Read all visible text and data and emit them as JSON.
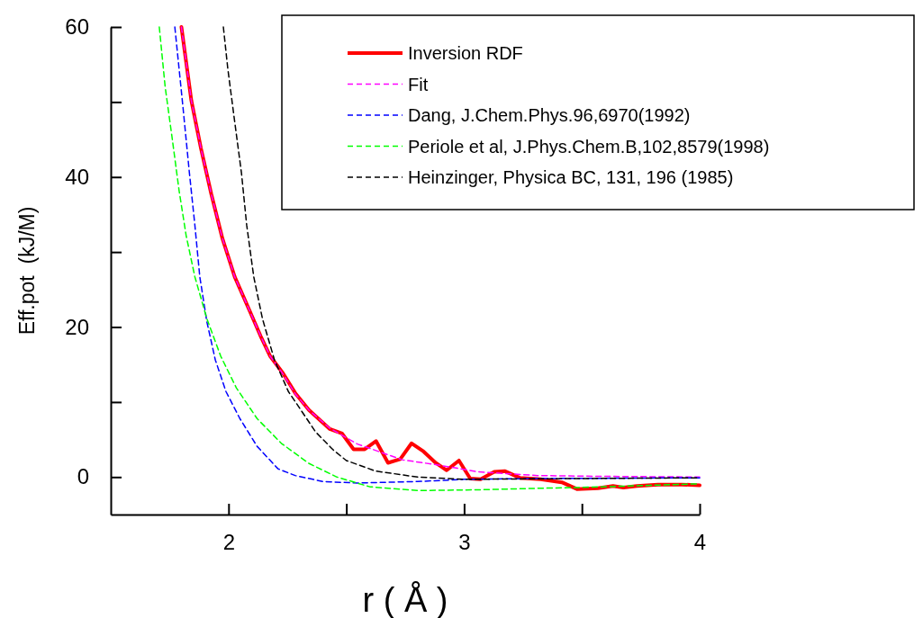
{
  "chart_data": {
    "type": "line",
    "xlabel": "r ( Å )",
    "ylabel": "Eff.pot  (kJ/M)",
    "xlim": [
      1.5,
      4
    ],
    "ylim": [
      -5,
      60
    ],
    "xticks": [
      2,
      {
        "value": 2.5,
        "label": null
      },
      3,
      {
        "value": 3.5,
        "label": null
      },
      4
    ],
    "yticks": [
      0,
      {
        "value": 10,
        "label": null
      },
      20,
      {
        "value": 30,
        "label": null
      },
      40,
      {
        "value": 50,
        "label": null
      },
      60
    ],
    "grid": false,
    "legend": "top right",
    "marker": "none",
    "series": [
      {
        "name": "Inversion RDF",
        "color": "#ff0000",
        "line_style": "solid",
        "x": [
          1.8,
          1.842,
          1.883,
          1.927,
          1.974,
          2.026,
          2.085,
          2.136,
          2.177,
          2.232,
          2.283,
          2.342,
          2.43,
          2.482,
          2.531,
          2.578,
          2.626,
          2.677,
          2.729,
          2.777,
          2.828,
          2.879,
          2.926,
          2.978,
          3.026,
          3.07,
          3.128,
          3.172,
          3.236,
          3.325,
          3.415,
          3.479,
          3.568,
          3.632,
          3.676,
          3.734,
          3.823,
          3.925,
          4.0
        ],
        "values": [
          60,
          50.2,
          43.8,
          37.7,
          31.8,
          26.7,
          22.5,
          18.8,
          16.1,
          13.8,
          11.2,
          8.9,
          6.4,
          5.8,
          3.7,
          3.7,
          4.8,
          1.9,
          2.4,
          4.5,
          3.4,
          1.9,
          0.9,
          2.2,
          -0.2,
          -0.3,
          0.7,
          0.8,
          -0.1,
          -0.3,
          -0.7,
          -1.6,
          -1.5,
          -1.2,
          -1.4,
          -1.2,
          -1.0,
          -1.0,
          -1.1
        ]
      },
      {
        "name": "Fit",
        "color": "#ff00ff",
        "line_style": "dashed",
        "x": [
          1.8,
          1.842,
          1.883,
          1.927,
          1.974,
          2.026,
          2.085,
          2.136,
          2.177,
          2.232,
          2.283,
          2.342,
          2.43,
          2.547,
          2.738,
          2.891,
          3.058,
          3.312,
          3.57,
          4.0
        ],
        "values": [
          60,
          50.2,
          43.8,
          37.7,
          31.8,
          26.7,
          22.5,
          18.8,
          16.1,
          13.7,
          11.1,
          8.9,
          6.5,
          4.4,
          2.3,
          1.6,
          0.7,
          0.2,
          0.1,
          0.0
        ]
      },
      {
        "name": "Dang, J.Chem.Phys.96,6970(1992)",
        "color": "#0000ff",
        "line_style": "dashed",
        "x": [
          1.772,
          1.805,
          1.834,
          1.857,
          1.878,
          1.908,
          1.944,
          1.989,
          2.048,
          2.121,
          2.21,
          2.283,
          2.401,
          2.547,
          2.803,
          3.0,
          3.31,
          4.0
        ],
        "values": [
          60,
          49.8,
          40.5,
          33.6,
          26.7,
          20.7,
          15.6,
          11.4,
          7.8,
          4.1,
          1.1,
          0.2,
          -0.6,
          -0.8,
          -0.6,
          -0.3,
          -0.2,
          -0.1
        ]
      },
      {
        "name": "Periole et al, J.Phys.Chem.B,102,8579(1998)",
        "color": "#00ff00",
        "line_style": "dashed",
        "x": [
          1.706,
          1.731,
          1.761,
          1.79,
          1.82,
          1.857,
          1.908,
          1.967,
          2.033,
          2.121,
          2.224,
          2.342,
          2.46,
          2.6,
          2.803,
          3.058,
          3.312,
          3.479,
          3.695,
          4.0
        ],
        "values": [
          60,
          52,
          45.1,
          38.2,
          32.2,
          26.7,
          21.1,
          16.1,
          11.9,
          7.8,
          4.5,
          1.8,
          0.0,
          -1.3,
          -1.8,
          -1.7,
          -1.5,
          -1.4,
          -1.2,
          -0.9
        ]
      },
      {
        "name": "Heinzinger, Physica BC, 131, 196 (1985)",
        "color": "#000000",
        "line_style": "dashed",
        "x": [
          1.978,
          1.997,
          2.026,
          2.055,
          2.077,
          2.107,
          2.144,
          2.195,
          2.254,
          2.31,
          2.37,
          2.445,
          2.5,
          2.624,
          2.803,
          3.0,
          3.5,
          4.0
        ],
        "values": [
          60,
          54.4,
          47.4,
          40.5,
          33.6,
          26.7,
          21.1,
          15.6,
          11.4,
          8.8,
          6.0,
          3.6,
          2.2,
          0.8,
          0.0,
          -0.3,
          -0.2,
          -0.1
        ]
      }
    ]
  }
}
